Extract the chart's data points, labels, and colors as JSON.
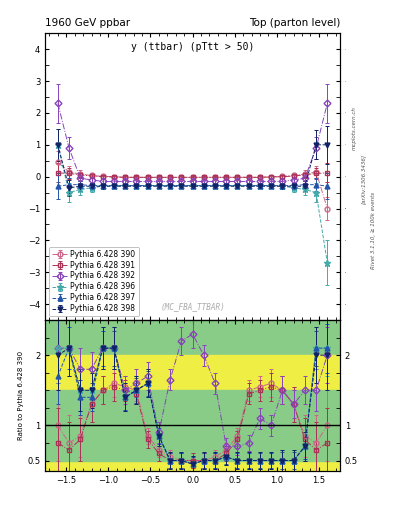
{
  "title_left": "1960 GeV ppbar",
  "title_right": "Top (parton level)",
  "plot_title": "y (ttbar) (pTtt > 50)",
  "watermark": "(MC_FBA_TTBAR)",
  "right_label_top": "mcplots.cern.ch",
  "right_label_mid": "[arXiv:1306.3436]",
  "right_label_bot": "Rivet 3.1.10, ≥ 100k events",
  "ylabel_ratio": "Ratio to Pythia 6.428 390",
  "xlim": [
    -1.75,
    1.75
  ],
  "ylim_main": [
    -4.5,
    4.5
  ],
  "main_yticks": [
    -4,
    -3,
    -2,
    -1,
    0,
    1,
    2,
    3,
    4
  ],
  "ylim_ratio": [
    0.35,
    2.5
  ],
  "ratio_yticks": [
    0.5,
    1,
    2
  ],
  "series": [
    {
      "label": "Pythia 6.428 390",
      "color": "#cc6688",
      "marker": "o",
      "linestyle": "-.",
      "mfc": "none",
      "markersize": 3.5,
      "x": [
        -1.6,
        -1.467,
        -1.333,
        -1.2,
        -1.067,
        -0.933,
        -0.8,
        -0.667,
        -0.533,
        -0.4,
        -0.267,
        -0.133,
        0.0,
        0.133,
        0.267,
        0.4,
        0.533,
        0.667,
        0.8,
        0.933,
        1.067,
        1.2,
        1.333,
        1.467,
        1.6
      ],
      "y": [
        0.45,
        0.15,
        0.08,
        0.04,
        0.01,
        0.0,
        -0.02,
        -0.02,
        -0.02,
        -0.02,
        -0.02,
        -0.02,
        -0.02,
        -0.02,
        -0.02,
        -0.02,
        -0.02,
        -0.02,
        -0.02,
        0.0,
        0.01,
        0.04,
        0.08,
        0.15,
        -1.0
      ],
      "yerr": [
        0.35,
        0.2,
        0.12,
        0.08,
        0.06,
        0.05,
        0.04,
        0.04,
        0.04,
        0.04,
        0.04,
        0.04,
        0.04,
        0.04,
        0.04,
        0.04,
        0.04,
        0.04,
        0.04,
        0.05,
        0.06,
        0.08,
        0.12,
        0.2,
        0.35
      ],
      "ratio_y": [
        1.0,
        0.75,
        0.85,
        1.3,
        1.5,
        1.6,
        1.55,
        1.5,
        0.85,
        0.65,
        0.55,
        0.5,
        0.5,
        0.5,
        0.55,
        0.65,
        0.85,
        1.5,
        1.55,
        1.6,
        1.5,
        1.3,
        0.85,
        0.75,
        1.0
      ],
      "ratio_yerr": [
        0.5,
        0.4,
        0.3,
        0.25,
        0.2,
        0.2,
        0.15,
        0.15,
        0.12,
        0.1,
        0.1,
        0.1,
        0.1,
        0.1,
        0.1,
        0.1,
        0.12,
        0.15,
        0.15,
        0.2,
        0.2,
        0.25,
        0.3,
        0.4,
        0.5
      ]
    },
    {
      "label": "Pythia 6.428 391",
      "color": "#aa3355",
      "marker": "s",
      "linestyle": "-.",
      "mfc": "none",
      "markersize": 3.5,
      "x": [
        -1.6,
        -1.467,
        -1.333,
        -1.2,
        -1.067,
        -0.933,
        -0.8,
        -0.667,
        -0.533,
        -0.4,
        -0.267,
        -0.133,
        0.0,
        0.133,
        0.267,
        0.4,
        0.533,
        0.667,
        0.8,
        0.933,
        1.067,
        1.2,
        1.333,
        1.467,
        1.6
      ],
      "y": [
        0.12,
        0.1,
        0.06,
        0.02,
        0.0,
        -0.01,
        -0.02,
        -0.02,
        -0.02,
        -0.02,
        -0.02,
        -0.02,
        -0.02,
        -0.02,
        -0.02,
        -0.02,
        -0.02,
        -0.02,
        -0.02,
        -0.01,
        0.0,
        0.02,
        0.06,
        0.1,
        0.12
      ],
      "yerr": [
        0.3,
        0.18,
        0.1,
        0.07,
        0.05,
        0.04,
        0.04,
        0.04,
        0.04,
        0.04,
        0.04,
        0.04,
        0.04,
        0.04,
        0.04,
        0.04,
        0.04,
        0.04,
        0.04,
        0.04,
        0.05,
        0.07,
        0.1,
        0.18,
        0.3
      ],
      "ratio_y": [
        0.75,
        0.65,
        0.8,
        1.3,
        1.5,
        1.55,
        1.5,
        1.45,
        0.8,
        0.6,
        0.5,
        0.5,
        0.5,
        0.5,
        0.5,
        0.6,
        0.8,
        1.45,
        1.5,
        1.55,
        1.5,
        1.3,
        0.8,
        0.65,
        0.75
      ],
      "ratio_yerr": [
        0.5,
        0.4,
        0.3,
        0.25,
        0.2,
        0.2,
        0.15,
        0.15,
        0.12,
        0.1,
        0.1,
        0.1,
        0.1,
        0.1,
        0.1,
        0.1,
        0.12,
        0.15,
        0.15,
        0.2,
        0.2,
        0.25,
        0.3,
        0.4,
        0.5
      ]
    },
    {
      "label": "Pythia 6.428 392",
      "color": "#8844bb",
      "marker": "D",
      "linestyle": "-.",
      "mfc": "none",
      "markersize": 3.5,
      "x": [
        -1.6,
        -1.467,
        -1.333,
        -1.2,
        -1.067,
        -0.933,
        -0.8,
        -0.667,
        -0.533,
        -0.4,
        -0.267,
        -0.133,
        0.0,
        0.133,
        0.267,
        0.4,
        0.533,
        0.667,
        0.8,
        0.933,
        1.067,
        1.2,
        1.333,
        1.467,
        1.6
      ],
      "y": [
        2.3,
        0.9,
        -0.05,
        -0.1,
        -0.15,
        -0.15,
        -0.15,
        -0.15,
        -0.15,
        -0.15,
        -0.15,
        -0.15,
        -0.15,
        -0.15,
        -0.15,
        -0.15,
        -0.15,
        -0.15,
        -0.15,
        -0.15,
        -0.15,
        -0.1,
        -0.05,
        0.9,
        2.3
      ],
      "yerr": [
        0.6,
        0.35,
        0.15,
        0.1,
        0.08,
        0.07,
        0.06,
        0.06,
        0.06,
        0.06,
        0.06,
        0.06,
        0.06,
        0.06,
        0.06,
        0.06,
        0.06,
        0.06,
        0.06,
        0.07,
        0.08,
        0.1,
        0.15,
        0.35,
        0.6
      ],
      "ratio_y": [
        2.1,
        2.1,
        1.8,
        1.8,
        2.1,
        2.1,
        1.5,
        1.6,
        1.7,
        0.9,
        1.65,
        2.2,
        2.3,
        2.0,
        1.6,
        0.7,
        0.7,
        0.75,
        1.1,
        1.0,
        1.5,
        1.3,
        1.5,
        1.5,
        2.0
      ],
      "ratio_yerr": [
        0.5,
        0.4,
        0.3,
        0.25,
        0.3,
        0.3,
        0.2,
        0.2,
        0.2,
        0.15,
        0.15,
        0.2,
        0.2,
        0.15,
        0.15,
        0.12,
        0.12,
        0.12,
        0.15,
        0.15,
        0.2,
        0.2,
        0.2,
        0.3,
        0.4
      ]
    },
    {
      "label": "Pythia 6.428 396",
      "color": "#44aaaa",
      "marker": "*",
      "linestyle": "--",
      "mfc": "none",
      "markersize": 4.5,
      "x": [
        -1.6,
        -1.467,
        -1.333,
        -1.2,
        -1.067,
        -0.933,
        -0.8,
        -0.667,
        -0.533,
        -0.4,
        -0.267,
        -0.133,
        0.0,
        0.133,
        0.267,
        0.4,
        0.533,
        0.667,
        0.8,
        0.933,
        1.067,
        1.2,
        1.333,
        1.467,
        1.6
      ],
      "y": [
        1.0,
        -0.5,
        -0.4,
        -0.35,
        -0.3,
        -0.28,
        -0.28,
        -0.28,
        -0.28,
        -0.28,
        -0.28,
        -0.28,
        -0.28,
        -0.28,
        -0.28,
        -0.28,
        -0.28,
        -0.28,
        -0.28,
        -0.28,
        -0.3,
        -0.35,
        -0.4,
        -0.5,
        -2.7
      ],
      "yerr": [
        0.5,
        0.3,
        0.18,
        0.12,
        0.09,
        0.08,
        0.07,
        0.07,
        0.07,
        0.07,
        0.07,
        0.07,
        0.07,
        0.07,
        0.07,
        0.07,
        0.07,
        0.07,
        0.07,
        0.08,
        0.09,
        0.12,
        0.18,
        0.3,
        0.7
      ],
      "ratio_y": [
        2.1,
        2.1,
        1.5,
        1.5,
        2.1,
        2.1,
        1.4,
        1.5,
        1.6,
        0.85,
        0.5,
        0.5,
        0.45,
        0.5,
        0.5,
        0.55,
        0.5,
        0.5,
        0.5,
        0.5,
        0.5,
        0.5,
        0.7,
        2.1,
        2.1
      ],
      "ratio_yerr": [
        0.5,
        0.4,
        0.3,
        0.25,
        0.3,
        0.3,
        0.2,
        0.2,
        0.2,
        0.15,
        0.12,
        0.12,
        0.12,
        0.12,
        0.12,
        0.12,
        0.12,
        0.12,
        0.12,
        0.12,
        0.15,
        0.15,
        0.2,
        0.3,
        0.4
      ]
    },
    {
      "label": "Pythia 6.428 397",
      "color": "#2255aa",
      "marker": "^",
      "linestyle": "--",
      "mfc": "#2255aa",
      "markersize": 3.5,
      "x": [
        -1.6,
        -1.467,
        -1.333,
        -1.2,
        -1.067,
        -0.933,
        -0.8,
        -0.667,
        -0.533,
        -0.4,
        -0.267,
        -0.133,
        0.0,
        0.133,
        0.267,
        0.4,
        0.533,
        0.667,
        0.8,
        0.933,
        1.067,
        1.2,
        1.333,
        1.467,
        1.6
      ],
      "y": [
        -0.3,
        -0.25,
        -0.25,
        -0.28,
        -0.28,
        -0.28,
        -0.28,
        -0.28,
        -0.28,
        -0.28,
        -0.28,
        -0.28,
        -0.28,
        -0.28,
        -0.28,
        -0.28,
        -0.28,
        -0.28,
        -0.28,
        -0.28,
        -0.28,
        -0.28,
        -0.25,
        -0.25,
        -0.3
      ],
      "yerr": [
        0.4,
        0.2,
        0.12,
        0.09,
        0.07,
        0.06,
        0.06,
        0.06,
        0.06,
        0.06,
        0.06,
        0.06,
        0.06,
        0.06,
        0.06,
        0.06,
        0.06,
        0.06,
        0.06,
        0.06,
        0.07,
        0.09,
        0.12,
        0.2,
        0.4
      ],
      "ratio_y": [
        1.7,
        2.1,
        1.4,
        1.4,
        2.1,
        2.1,
        1.4,
        1.5,
        1.6,
        0.85,
        0.5,
        0.5,
        0.45,
        0.5,
        0.5,
        0.55,
        0.5,
        0.5,
        0.5,
        0.5,
        0.5,
        0.5,
        0.7,
        2.1,
        2.1
      ],
      "ratio_yerr": [
        0.4,
        0.3,
        0.25,
        0.2,
        0.25,
        0.25,
        0.18,
        0.18,
        0.18,
        0.12,
        0.1,
        0.1,
        0.1,
        0.1,
        0.1,
        0.1,
        0.1,
        0.1,
        0.1,
        0.1,
        0.12,
        0.12,
        0.18,
        0.25,
        0.35
      ]
    },
    {
      "label": "Pythia 6.428 398",
      "color": "#112266",
      "marker": "v",
      "linestyle": "--",
      "mfc": "#112266",
      "markersize": 3.5,
      "x": [
        -1.6,
        -1.467,
        -1.333,
        -1.2,
        -1.067,
        -0.933,
        -0.8,
        -0.667,
        -0.533,
        -0.4,
        -0.267,
        -0.133,
        0.0,
        0.133,
        0.267,
        0.4,
        0.533,
        0.667,
        0.8,
        0.933,
        1.067,
        1.2,
        1.333,
        1.467,
        1.6
      ],
      "y": [
        1.0,
        -0.35,
        -0.3,
        -0.3,
        -0.3,
        -0.3,
        -0.3,
        -0.3,
        -0.3,
        -0.3,
        -0.3,
        -0.3,
        -0.3,
        -0.3,
        -0.3,
        -0.3,
        -0.3,
        -0.3,
        -0.3,
        -0.3,
        -0.3,
        -0.3,
        -0.3,
        1.0,
        1.0
      ],
      "yerr": [
        0.5,
        0.25,
        0.15,
        0.1,
        0.08,
        0.07,
        0.06,
        0.06,
        0.06,
        0.06,
        0.06,
        0.06,
        0.06,
        0.06,
        0.06,
        0.06,
        0.06,
        0.06,
        0.06,
        0.07,
        0.08,
        0.1,
        0.15,
        0.45,
        0.6
      ],
      "ratio_y": [
        2.0,
        2.1,
        1.5,
        1.5,
        2.1,
        2.1,
        1.4,
        1.5,
        1.6,
        0.85,
        0.5,
        0.5,
        0.45,
        0.5,
        0.5,
        0.55,
        0.5,
        0.5,
        0.5,
        0.5,
        0.5,
        0.5,
        0.7,
        2.0,
        2.0
      ],
      "ratio_yerr": [
        0.5,
        0.4,
        0.3,
        0.25,
        0.3,
        0.3,
        0.2,
        0.2,
        0.2,
        0.15,
        0.12,
        0.12,
        0.12,
        0.12,
        0.12,
        0.12,
        0.12,
        0.12,
        0.12,
        0.12,
        0.15,
        0.15,
        0.2,
        0.4,
        0.5
      ]
    }
  ],
  "bg_green": "#88cc88",
  "bg_yellow": "#eeee44",
  "green_band": 0.5,
  "yellow_band": 1.0
}
